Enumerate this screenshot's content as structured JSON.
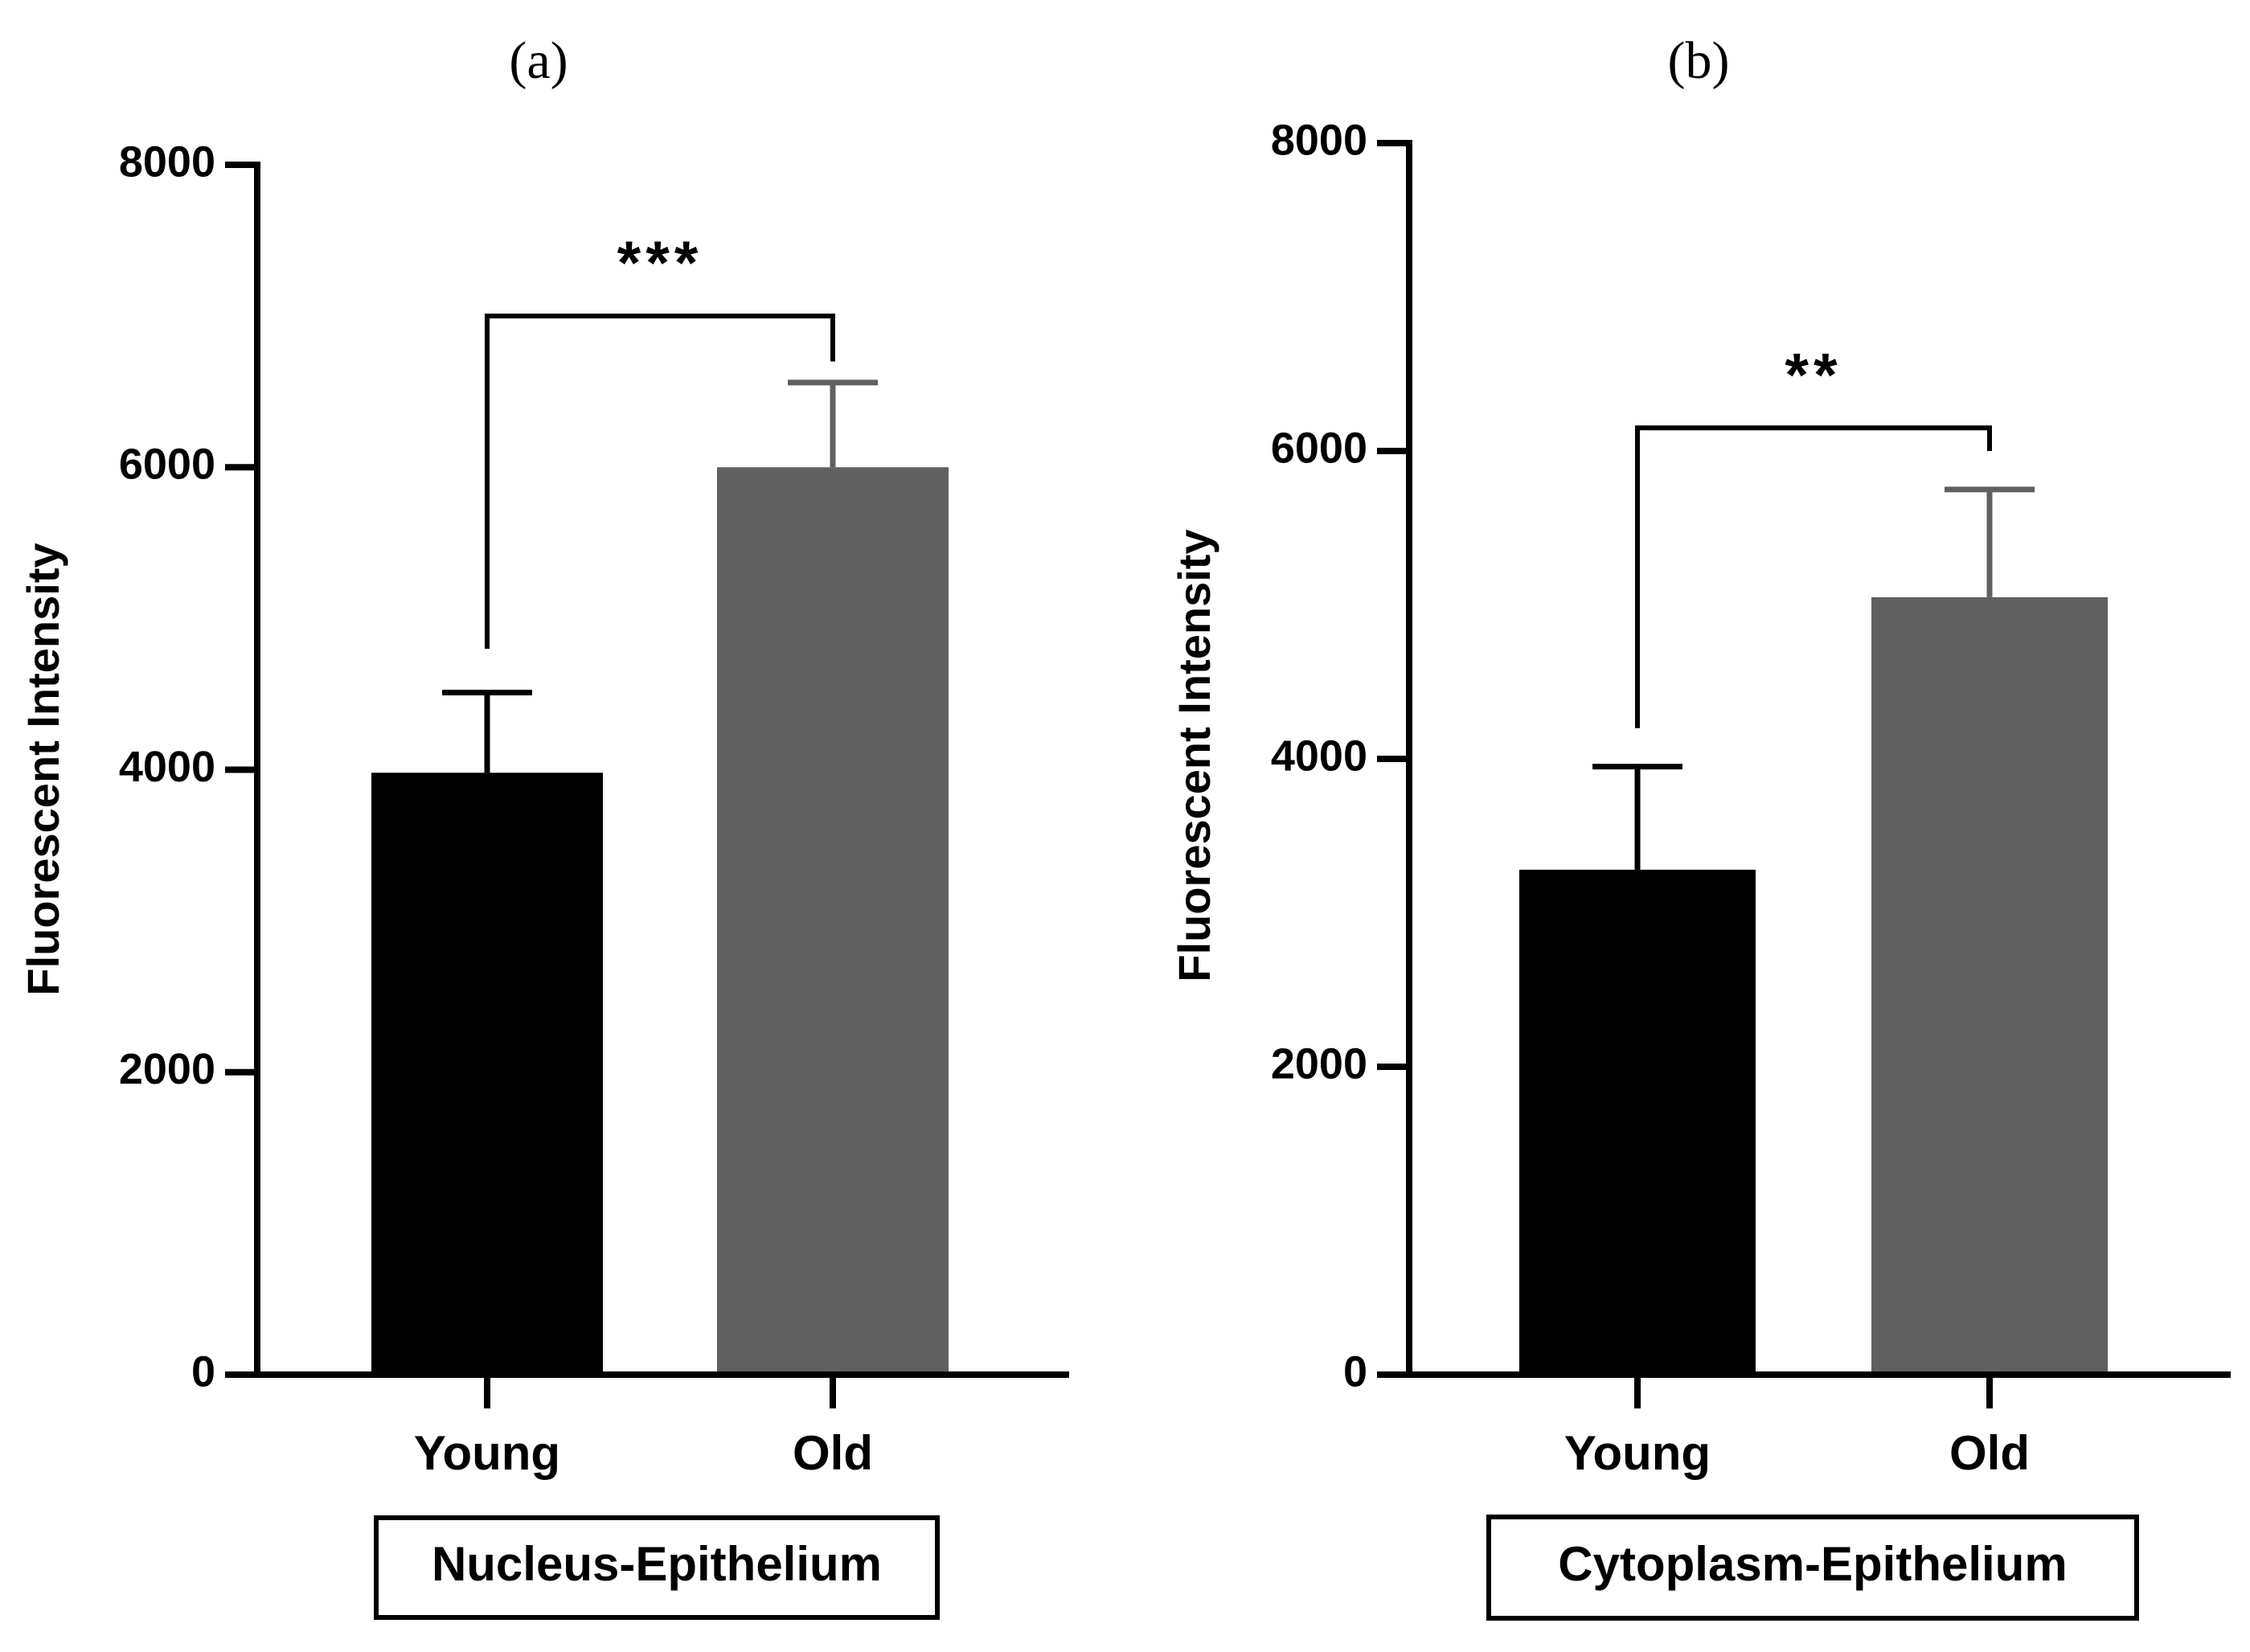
{
  "chart_data": [
    {
      "type": "bar",
      "panel_label": "(a)",
      "title": "Nucleus-Epithelium",
      "xlabel": "",
      "ylabel": "Fluorescent Intensity",
      "categories": [
        "Young",
        "Old"
      ],
      "values": [
        3980,
        6000
      ],
      "errors": [
        530,
        560
      ],
      "colors": [
        "#000000",
        "#606060"
      ],
      "error_colors": [
        "#000000",
        "#606060"
      ],
      "ylim": [
        0,
        8000
      ],
      "yticks": [
        0,
        2000,
        4000,
        6000,
        8000
      ],
      "ytick_labels": [
        "0",
        "2000",
        "4000",
        "6000",
        "8000"
      ],
      "significance": {
        "from": 0,
        "to": 1,
        "label": "***",
        "bracket_y": 7000,
        "left_end": 4800,
        "right_end": 6700
      },
      "grid": false
    },
    {
      "type": "bar",
      "panel_label": "(b)",
      "title": "Cytoplasm-Epithelium",
      "xlabel": "",
      "ylabel": "Fluorescent Intensity",
      "categories": [
        "Young",
        "Old"
      ],
      "values": [
        3280,
        5050
      ],
      "errors": [
        670,
        700
      ],
      "colors": [
        "#000000",
        "#606060"
      ],
      "error_colors": [
        "#000000",
        "#606060"
      ],
      "ylim": [
        0,
        8000
      ],
      "yticks": [
        0,
        2000,
        4000,
        6000,
        8000
      ],
      "ytick_labels": [
        "0",
        "2000",
        "4000",
        "6000",
        "8000"
      ],
      "significance": {
        "from": 0,
        "to": 1,
        "label": "**",
        "bracket_y": 6150,
        "left_end": 4200,
        "right_end": 6000
      },
      "grid": false
    }
  ]
}
